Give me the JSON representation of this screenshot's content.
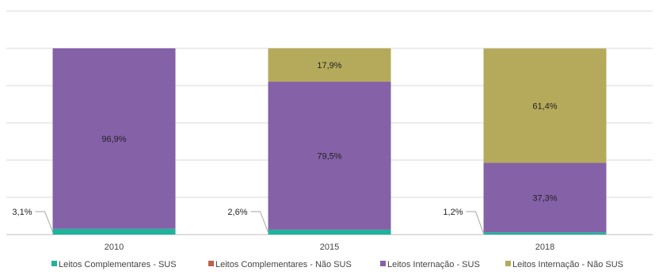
{
  "chart_data": {
    "type": "bar",
    "stacked": true,
    "normalized": true,
    "categories": [
      "2010",
      "2015",
      "2018"
    ],
    "series": [
      {
        "name": "Leitos Complementares - SUS",
        "color": "#1fb39b",
        "values": [
          3.1,
          2.6,
          1.2
        ],
        "labels": [
          "3,1%",
          "2,6%",
          "1,2%"
        ]
      },
      {
        "name": "Leitos Complementares - Não SUS",
        "color": "#c0604d",
        "values": [
          0,
          0,
          0
        ],
        "labels": [
          "",
          "",
          ""
        ]
      },
      {
        "name": "Leitos Internação - SUS",
        "color": "#8561a8",
        "values": [
          96.9,
          79.5,
          37.3
        ],
        "labels": [
          "96,9%",
          "79,5%",
          "37,3%"
        ]
      },
      {
        "name": "Leitos Internação - Não SUS",
        "color": "#b5aa5b",
        "values": [
          0,
          17.9,
          61.4
        ],
        "labels": [
          "",
          "17,9%",
          "61,4%"
        ]
      }
    ],
    "ylim": [
      0,
      100
    ],
    "grid": true,
    "legend_position": "bottom",
    "title": "",
    "xlabel": "",
    "ylabel": ""
  }
}
